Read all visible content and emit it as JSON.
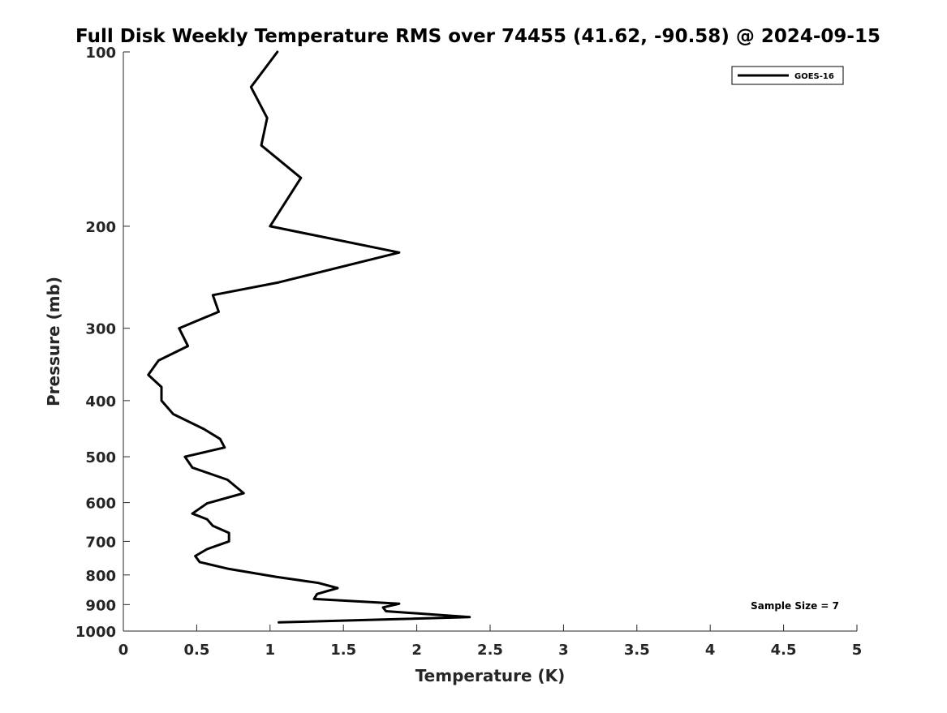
{
  "chart_data": {
    "type": "line",
    "title": "Full Disk Weekly Temperature RMS over 74455 (41.62, -90.58) @ 2024-09-15",
    "xlabel": "Temperature (K)",
    "ylabel": "Pressure (mb)",
    "xlim": [
      0,
      5
    ],
    "ylim": [
      100,
      1000
    ],
    "y_scale": "log",
    "y_reversed": true,
    "x_ticks": [
      "0",
      "0.5",
      "1",
      "1.5",
      "2",
      "2.5",
      "3",
      "3.5",
      "4",
      "4.5",
      "5"
    ],
    "y_ticks": [
      "100",
      "200",
      "300",
      "400",
      "500",
      "600",
      "700",
      "800",
      "900",
      "1000"
    ],
    "grid": false,
    "legend": {
      "placement": "top-right",
      "entries": [
        "GOES-16"
      ]
    },
    "annotation": "Sample Size = 7",
    "series": [
      {
        "name": "GOES-16",
        "color": "#000000",
        "points": [
          [
            1.05,
            100
          ],
          [
            0.87,
            115
          ],
          [
            0.98,
            130
          ],
          [
            0.94,
            145
          ],
          [
            1.21,
            165
          ],
          [
            1.0,
            200
          ],
          [
            1.88,
            222
          ],
          [
            1.06,
            250
          ],
          [
            0.61,
            263
          ],
          [
            0.65,
            281
          ],
          [
            0.38,
            300
          ],
          [
            0.44,
            322
          ],
          [
            0.24,
            341
          ],
          [
            0.17,
            361
          ],
          [
            0.26,
            379
          ],
          [
            0.26,
            400
          ],
          [
            0.34,
            422
          ],
          [
            0.55,
            448
          ],
          [
            0.66,
            466
          ],
          [
            0.69,
            482
          ],
          [
            0.42,
            500
          ],
          [
            0.47,
            522
          ],
          [
            0.71,
            548
          ],
          [
            0.82,
            578
          ],
          [
            0.57,
            602
          ],
          [
            0.47,
            627
          ],
          [
            0.57,
            641
          ],
          [
            0.61,
            658
          ],
          [
            0.72,
            677
          ],
          [
            0.72,
            700
          ],
          [
            0.57,
            722
          ],
          [
            0.49,
            742
          ],
          [
            0.52,
            760
          ],
          [
            0.72,
            781
          ],
          [
            1.04,
            806
          ],
          [
            1.33,
            826
          ],
          [
            1.46,
            843
          ],
          [
            1.32,
            863
          ],
          [
            1.3,
            880
          ],
          [
            1.88,
            897
          ],
          [
            1.77,
            910
          ],
          [
            1.79,
            924
          ],
          [
            2.36,
            946
          ],
          [
            1.06,
            966
          ]
        ]
      }
    ]
  }
}
